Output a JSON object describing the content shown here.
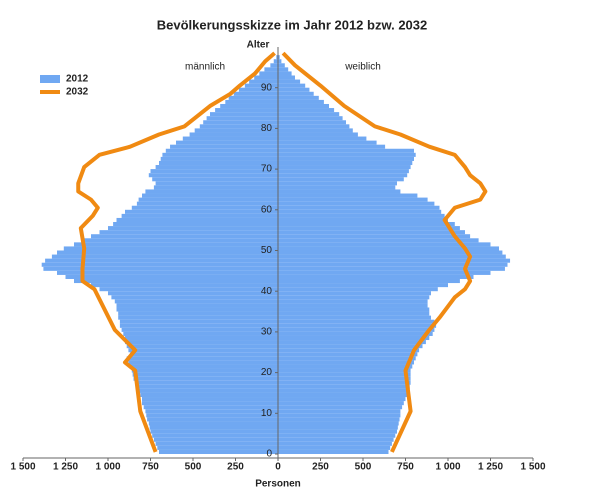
{
  "chart_data": {
    "type": "pyramid",
    "title": "Bevölkerungsskizze im Jahr 2012 bzw. 2032",
    "y_label": "Alter",
    "x_label": "Personen",
    "left_label": "männlich",
    "right_label": "weiblich",
    "ylim": [
      0,
      100
    ],
    "yticks": [
      0,
      10,
      20,
      30,
      40,
      50,
      60,
      70,
      80,
      90
    ],
    "xlim": [
      0,
      1500
    ],
    "xticks_left": [
      {
        "value": 1500,
        "label": "1 500"
      },
      {
        "value": 1250,
        "label": "1 250"
      },
      {
        "value": 1000,
        "label": "1 000"
      },
      750,
      500,
      250
    ],
    "xticks_right": [
      0,
      250,
      500,
      750,
      {
        "value": 1000,
        "label": "1 000"
      },
      {
        "value": 1250,
        "label": "1 250"
      },
      {
        "value": 1500,
        "label": "1 500"
      }
    ],
    "bars": {
      "name": "2012",
      "color": "#70a8f2",
      "male": [
        700,
        710,
        720,
        730,
        740,
        750,
        755,
        760,
        770,
        775,
        780,
        790,
        800,
        800,
        810,
        820,
        830,
        840,
        850,
        855,
        860,
        870,
        880,
        890,
        870,
        880,
        890,
        900,
        900,
        910,
        920,
        930,
        930,
        940,
        940,
        950,
        950,
        960,
        980,
        1000,
        1050,
        1100,
        1200,
        1250,
        1300,
        1380,
        1390,
        1370,
        1330,
        1300,
        1260,
        1200,
        1150,
        1100,
        1050,
        1000,
        970,
        950,
        920,
        900,
        860,
        830,
        820,
        800,
        780,
        730,
        720,
        740,
        760,
        750,
        720,
        700,
        690,
        680,
        660,
        635,
        600,
        560,
        520,
        490,
        460,
        440,
        420,
        400,
        370,
        340,
        310,
        290,
        260,
        230,
        195,
        170,
        140,
        110,
        80,
        45,
        25,
        10
      ],
      "female": [
        650,
        660,
        670,
        680,
        690,
        700,
        705,
        710,
        715,
        720,
        720,
        730,
        740,
        750,
        760,
        770,
        775,
        780,
        780,
        780,
        780,
        790,
        800,
        810,
        820,
        830,
        850,
        870,
        890,
        910,
        920,
        930,
        920,
        900,
        890,
        890,
        880,
        880,
        890,
        900,
        940,
        1000,
        1070,
        1150,
        1250,
        1335,
        1350,
        1365,
        1340,
        1320,
        1300,
        1250,
        1180,
        1130,
        1100,
        1070,
        1040,
        1000,
        980,
        960,
        950,
        920,
        880,
        820,
        720,
        690,
        700,
        740,
        760,
        770,
        780,
        790,
        800,
        810,
        800,
        630,
        580,
        520,
        470,
        440,
        420,
        400,
        380,
        360,
        330,
        300,
        270,
        240,
        210,
        185,
        160,
        130,
        100,
        80,
        60,
        40,
        20,
        10
      ]
    },
    "lines": {
      "name": "2032",
      "color": "#f08a12",
      "male_ages": [
        0,
        10,
        20,
        22,
        25,
        30,
        35,
        40,
        42,
        45,
        50,
        55,
        58,
        60,
        62,
        64,
        66,
        70,
        73,
        75,
        78,
        80,
        85,
        88,
        90,
        93,
        96,
        98
      ],
      "male": [
        720,
        810,
        840,
        900,
        840,
        960,
        1020,
        1080,
        1150,
        1150,
        1140,
        1160,
        1090,
        1060,
        1100,
        1175,
        1175,
        1140,
        1050,
        870,
        700,
        550,
        400,
        280,
        225,
        135,
        75,
        20
      ],
      "female_ages": [
        0,
        10,
        20,
        25,
        30,
        33,
        38,
        40,
        42,
        45,
        48,
        50,
        53,
        57,
        60,
        62,
        64,
        66,
        68,
        70,
        73,
        75,
        78,
        80,
        85,
        90,
        95,
        98
      ],
      "female": [
        670,
        780,
        750,
        800,
        890,
        950,
        1040,
        1100,
        1130,
        1100,
        1130,
        1100,
        1040,
        980,
        1040,
        1190,
        1220,
        1190,
        1130,
        1100,
        1040,
        890,
        720,
        570,
        390,
        250,
        100,
        30
      ]
    }
  }
}
